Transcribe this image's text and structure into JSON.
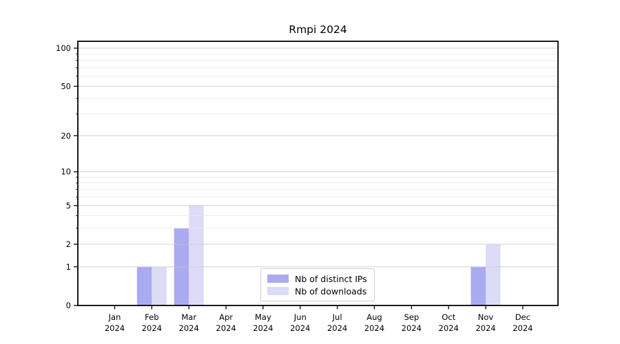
{
  "chart_data": {
    "type": "bar",
    "title": "Rmpi 2024",
    "year_label": "2024",
    "categories": [
      "Jan",
      "Feb",
      "Mar",
      "Apr",
      "May",
      "Jun",
      "Jul",
      "Aug",
      "Sep",
      "Oct",
      "Nov",
      "Dec"
    ],
    "series": [
      {
        "name": "Nb of distinct IPs",
        "color": "#aaaaf0",
        "values": [
          0,
          1,
          3,
          0,
          0,
          0,
          0,
          0,
          0,
          0,
          1,
          0
        ]
      },
      {
        "name": "Nb of downloads",
        "color": "#dcdcf8",
        "values": [
          0,
          1,
          5,
          0,
          0,
          0,
          0,
          0,
          0,
          0,
          2,
          0
        ]
      }
    ],
    "xlabel": "",
    "ylabel": "",
    "yscale": "log1p",
    "ylim": [
      0,
      114
    ],
    "y_major_ticks": [
      0,
      1,
      2,
      5,
      10,
      20,
      50,
      100
    ],
    "y_tick_labels": [
      "0",
      "1",
      "2",
      "5",
      "10",
      "20",
      "50",
      "100"
    ],
    "y_minor_ticks": [
      3,
      4,
      6,
      7,
      8,
      9,
      30,
      40,
      60,
      70,
      80,
      90
    ],
    "grid": "major and minor horizontal gridlines drawn above bars",
    "legend_position": "lower center",
    "colors": {
      "major_grid": "#c9c9c9",
      "minor_grid": "#e9e9e9",
      "axis": "#000000",
      "background": "#ffffff"
    }
  }
}
